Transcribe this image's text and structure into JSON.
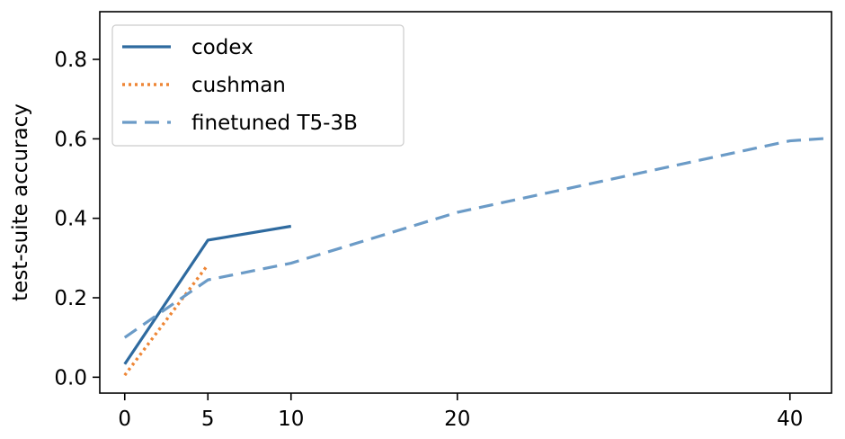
{
  "chart_data": {
    "type": "line",
    "title": "",
    "xlabel": "",
    "ylabel": "test-suite accuracy",
    "xlim": [
      -1.5,
      42.5
    ],
    "ylim": [
      -0.04,
      0.92
    ],
    "xticks": [
      0,
      5,
      10,
      20,
      40
    ],
    "yticks": [
      0.0,
      0.2,
      0.4,
      0.6,
      0.8
    ],
    "xtick_labels": [
      "0",
      "5",
      "10",
      "20",
      "40"
    ],
    "ytick_labels": [
      "0.0",
      "0.2",
      "0.4",
      "0.6",
      "0.8"
    ],
    "grid": false,
    "legend_position": "top-left",
    "series": [
      {
        "name": "codex",
        "style": "solid",
        "color": "#2e6a9f",
        "x": [
          0,
          5,
          10
        ],
        "y": [
          0.033,
          0.345,
          0.38
        ]
      },
      {
        "name": "cushman",
        "style": "dotted",
        "color": "#ee8636",
        "x": [
          0,
          5
        ],
        "y": [
          0.005,
          0.283
        ]
      },
      {
        "name": "finetuned T5-3B",
        "style": "dashed",
        "color": "#6b9bc7",
        "x": [
          0,
          5,
          10,
          20,
          40,
          42.5
        ],
        "y": [
          0.1,
          0.245,
          0.287,
          0.415,
          0.595,
          0.602
        ]
      }
    ]
  }
}
